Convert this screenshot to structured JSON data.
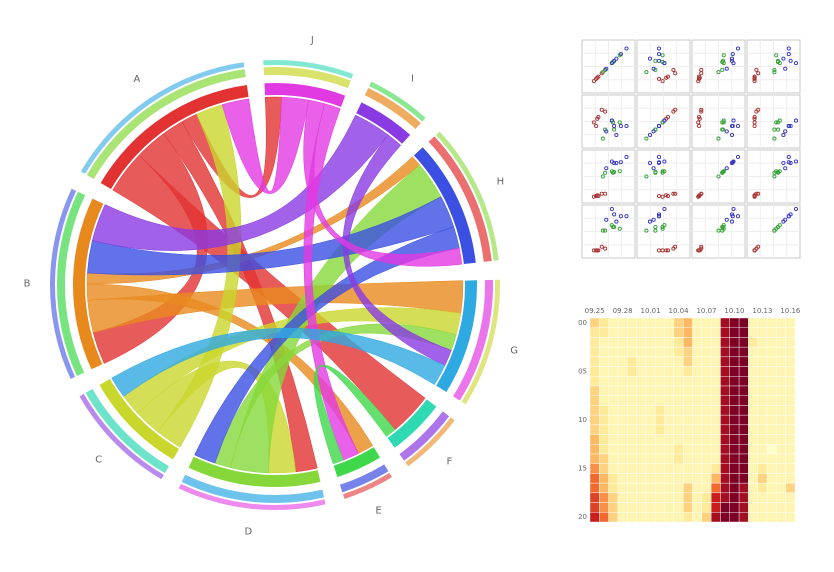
{
  "chart_data": [
    {
      "type": "chord",
      "categories": [
        "A",
        "B",
        "C",
        "D",
        "E",
        "F",
        "G",
        "H",
        "I",
        "J"
      ],
      "colors": [
        "#e23232",
        "#e8891e",
        "#c9d62c",
        "#86d83a",
        "#3ed84a",
        "#2fd9b2",
        "#2fa9e2",
        "#3b4fe2",
        "#8a3ae2",
        "#e23ae2"
      ],
      "links": [
        {
          "source": 0,
          "target": 5,
          "value": 8
        },
        {
          "source": 0,
          "target": 1,
          "value": 6
        },
        {
          "source": 0,
          "target": 3,
          "value": 4
        },
        {
          "source": 0,
          "target": 9,
          "value": 3
        },
        {
          "source": 1,
          "target": 6,
          "value": 6
        },
        {
          "source": 1,
          "target": 4,
          "value": 3
        },
        {
          "source": 1,
          "target": 7,
          "value": 2
        },
        {
          "source": 2,
          "target": 0,
          "value": 5
        },
        {
          "source": 2,
          "target": 3,
          "value": 5
        },
        {
          "source": 2,
          "target": 6,
          "value": 4
        },
        {
          "source": 3,
          "target": 7,
          "value": 7
        },
        {
          "source": 3,
          "target": 6,
          "value": 3
        },
        {
          "source": 7,
          "target": 1,
          "value": 6
        },
        {
          "source": 7,
          "target": 3,
          "value": 4
        },
        {
          "source": 8,
          "target": 1,
          "value": 7
        },
        {
          "source": 8,
          "target": 6,
          "value": 3
        },
        {
          "source": 9,
          "target": 0,
          "value": 5
        },
        {
          "source": 9,
          "target": 7,
          "value": 3
        },
        {
          "source": 9,
          "target": 4,
          "value": 3
        },
        {
          "source": 6,
          "target": 2,
          "value": 4
        },
        {
          "source": 4,
          "target": 5,
          "value": 2
        }
      ]
    },
    {
      "type": "scatter_matrix",
      "lims": [
        [
          4,
          8
        ],
        [
          2,
          4.5
        ],
        [
          1,
          7
        ],
        [
          0,
          2.5
        ]
      ],
      "grid": true,
      "series": [
        {
          "color": "#a83232",
          "values": [
            [
              5.1,
              4.9,
              4.7,
              5.4,
              5.0,
              5.7
            ],
            [
              3.5,
              3.0,
              3.2,
              3.9,
              3.4,
              3.8
            ],
            [
              1.4,
              1.4,
              1.3,
              1.7,
              1.5,
              1.7
            ],
            [
              0.2,
              0.2,
              0.2,
              0.4,
              0.2,
              0.3
            ]
          ]
        },
        {
          "color": "#34a034",
          "values": [
            [
              7.0,
              6.4,
              5.5,
              6.5,
              5.7,
              6.3
            ],
            [
              3.2,
              3.2,
              2.3,
              2.8,
              2.8,
              3.3
            ],
            [
              4.7,
              4.5,
              4.0,
              4.6,
              4.5,
              4.7
            ],
            [
              1.4,
              1.5,
              1.3,
              1.5,
              1.3,
              1.6
            ]
          ]
        },
        {
          "color": "#3434c4",
          "values": [
            [
              6.3,
              5.8,
              7.1,
              6.5,
              7.6,
              6.7
            ],
            [
              3.3,
              2.7,
              3.0,
              3.0,
              3.0,
              2.5
            ],
            [
              6.0,
              5.1,
              5.9,
              5.8,
              6.6,
              5.8
            ],
            [
              2.5,
              1.9,
              2.1,
              2.2,
              2.1,
              1.8
            ]
          ]
        }
      ]
    },
    {
      "type": "heatmap",
      "x": [
        "09.25",
        null,
        null,
        "09.28",
        null,
        null,
        "10.01",
        null,
        null,
        "10.04",
        null,
        null,
        "10.07",
        null,
        null,
        "10.10",
        null,
        null,
        "10.13",
        null,
        null,
        "10.16"
      ],
      "y": [
        "00",
        null,
        null,
        null,
        null,
        "05",
        null,
        null,
        null,
        null,
        "10",
        null,
        null,
        null,
        null,
        "15",
        null,
        null,
        null,
        null,
        "20"
      ],
      "zlim": [
        0,
        10
      ],
      "colorscale": [
        "#ffffcc",
        "#feeb9a",
        "#fdb863",
        "#f06a30",
        "#c81e1e",
        "#7d0025"
      ],
      "values": [
        [
          3,
          2,
          1,
          1,
          1,
          1,
          1,
          1,
          1,
          3,
          4,
          1,
          1,
          1,
          9,
          10,
          10,
          1,
          1,
          1,
          1,
          1
        ],
        [
          2,
          2,
          1,
          1,
          1,
          1,
          1,
          1,
          1,
          3,
          4,
          1,
          1,
          1,
          9,
          10,
          10,
          1,
          1,
          1,
          1,
          1
        ],
        [
          2,
          1,
          1,
          1,
          1,
          1,
          1,
          1,
          1,
          2,
          4,
          1,
          1,
          1,
          9,
          10,
          10,
          2,
          1,
          1,
          1,
          1
        ],
        [
          2,
          1,
          1,
          1,
          1,
          1,
          1,
          1,
          1,
          2,
          3,
          1,
          1,
          1,
          9,
          10,
          10,
          1,
          1,
          1,
          1,
          1
        ],
        [
          2,
          1,
          1,
          1,
          2,
          1,
          1,
          1,
          1,
          1,
          3,
          1,
          1,
          1,
          9,
          10,
          10,
          1,
          1,
          1,
          1,
          1
        ],
        [
          2,
          1,
          1,
          1,
          2,
          1,
          1,
          1,
          1,
          1,
          2,
          1,
          1,
          1,
          9,
          10,
          10,
          1,
          1,
          1,
          1,
          1
        ],
        [
          2,
          1,
          1,
          1,
          1,
          1,
          1,
          1,
          1,
          1,
          1,
          1,
          1,
          1,
          9,
          10,
          10,
          1,
          1,
          1,
          1,
          1
        ],
        [
          3,
          1,
          1,
          1,
          1,
          1,
          1,
          1,
          1,
          1,
          1,
          1,
          1,
          1,
          9,
          10,
          10,
          1,
          1,
          1,
          1,
          1
        ],
        [
          3,
          1,
          1,
          1,
          1,
          1,
          1,
          1,
          1,
          1,
          1,
          1,
          1,
          1,
          9,
          10,
          10,
          1,
          1,
          1,
          1,
          1
        ],
        [
          3,
          2,
          1,
          1,
          1,
          1,
          1,
          2,
          1,
          1,
          1,
          1,
          1,
          1,
          9,
          10,
          10,
          1,
          1,
          1,
          1,
          1
        ],
        [
          3,
          2,
          1,
          1,
          1,
          1,
          1,
          2,
          1,
          1,
          1,
          1,
          1,
          1,
          9,
          10,
          10,
          1,
          1,
          1,
          1,
          1
        ],
        [
          3,
          2,
          1,
          1,
          1,
          1,
          1,
          2,
          1,
          1,
          1,
          1,
          1,
          1,
          9,
          10,
          10,
          1,
          1,
          1,
          1,
          1
        ],
        [
          4,
          2,
          1,
          1,
          1,
          1,
          1,
          1,
          1,
          1,
          1,
          1,
          1,
          1,
          9,
          10,
          10,
          1,
          1,
          1,
          1,
          1
        ],
        [
          4,
          2,
          1,
          1,
          1,
          1,
          1,
          1,
          1,
          2,
          1,
          1,
          1,
          1,
          9,
          10,
          10,
          1,
          1,
          0,
          1,
          1
        ],
        [
          4,
          3,
          1,
          1,
          1,
          1,
          1,
          1,
          1,
          2,
          1,
          1,
          1,
          1,
          9,
          10,
          10,
          1,
          1,
          1,
          1,
          1
        ],
        [
          5,
          3,
          1,
          1,
          1,
          1,
          1,
          1,
          1,
          1,
          1,
          1,
          1,
          2,
          9,
          10,
          10,
          1,
          2,
          1,
          1,
          1
        ],
        [
          6,
          4,
          2,
          1,
          1,
          1,
          1,
          1,
          1,
          1,
          1,
          1,
          1,
          4,
          9,
          10,
          10,
          1,
          3,
          1,
          1,
          1
        ],
        [
          6,
          4,
          2,
          1,
          1,
          1,
          1,
          1,
          1,
          1,
          3,
          1,
          1,
          6,
          9,
          10,
          9,
          1,
          2,
          1,
          1,
          3
        ],
        [
          7,
          5,
          3,
          1,
          1,
          1,
          1,
          1,
          1,
          1,
          3,
          1,
          2,
          8,
          9,
          10,
          9,
          1,
          1,
          1,
          1,
          1
        ],
        [
          7,
          5,
          3,
          1,
          1,
          1,
          1,
          1,
          1,
          1,
          3,
          1,
          2,
          8,
          10,
          10,
          9,
          1,
          1,
          1,
          1,
          1
        ],
        [
          8,
          6,
          3,
          1,
          1,
          1,
          1,
          1,
          1,
          1,
          2,
          1,
          3,
          9,
          10,
          10,
          9,
          1,
          1,
          1,
          1,
          1
        ]
      ]
    }
  ]
}
